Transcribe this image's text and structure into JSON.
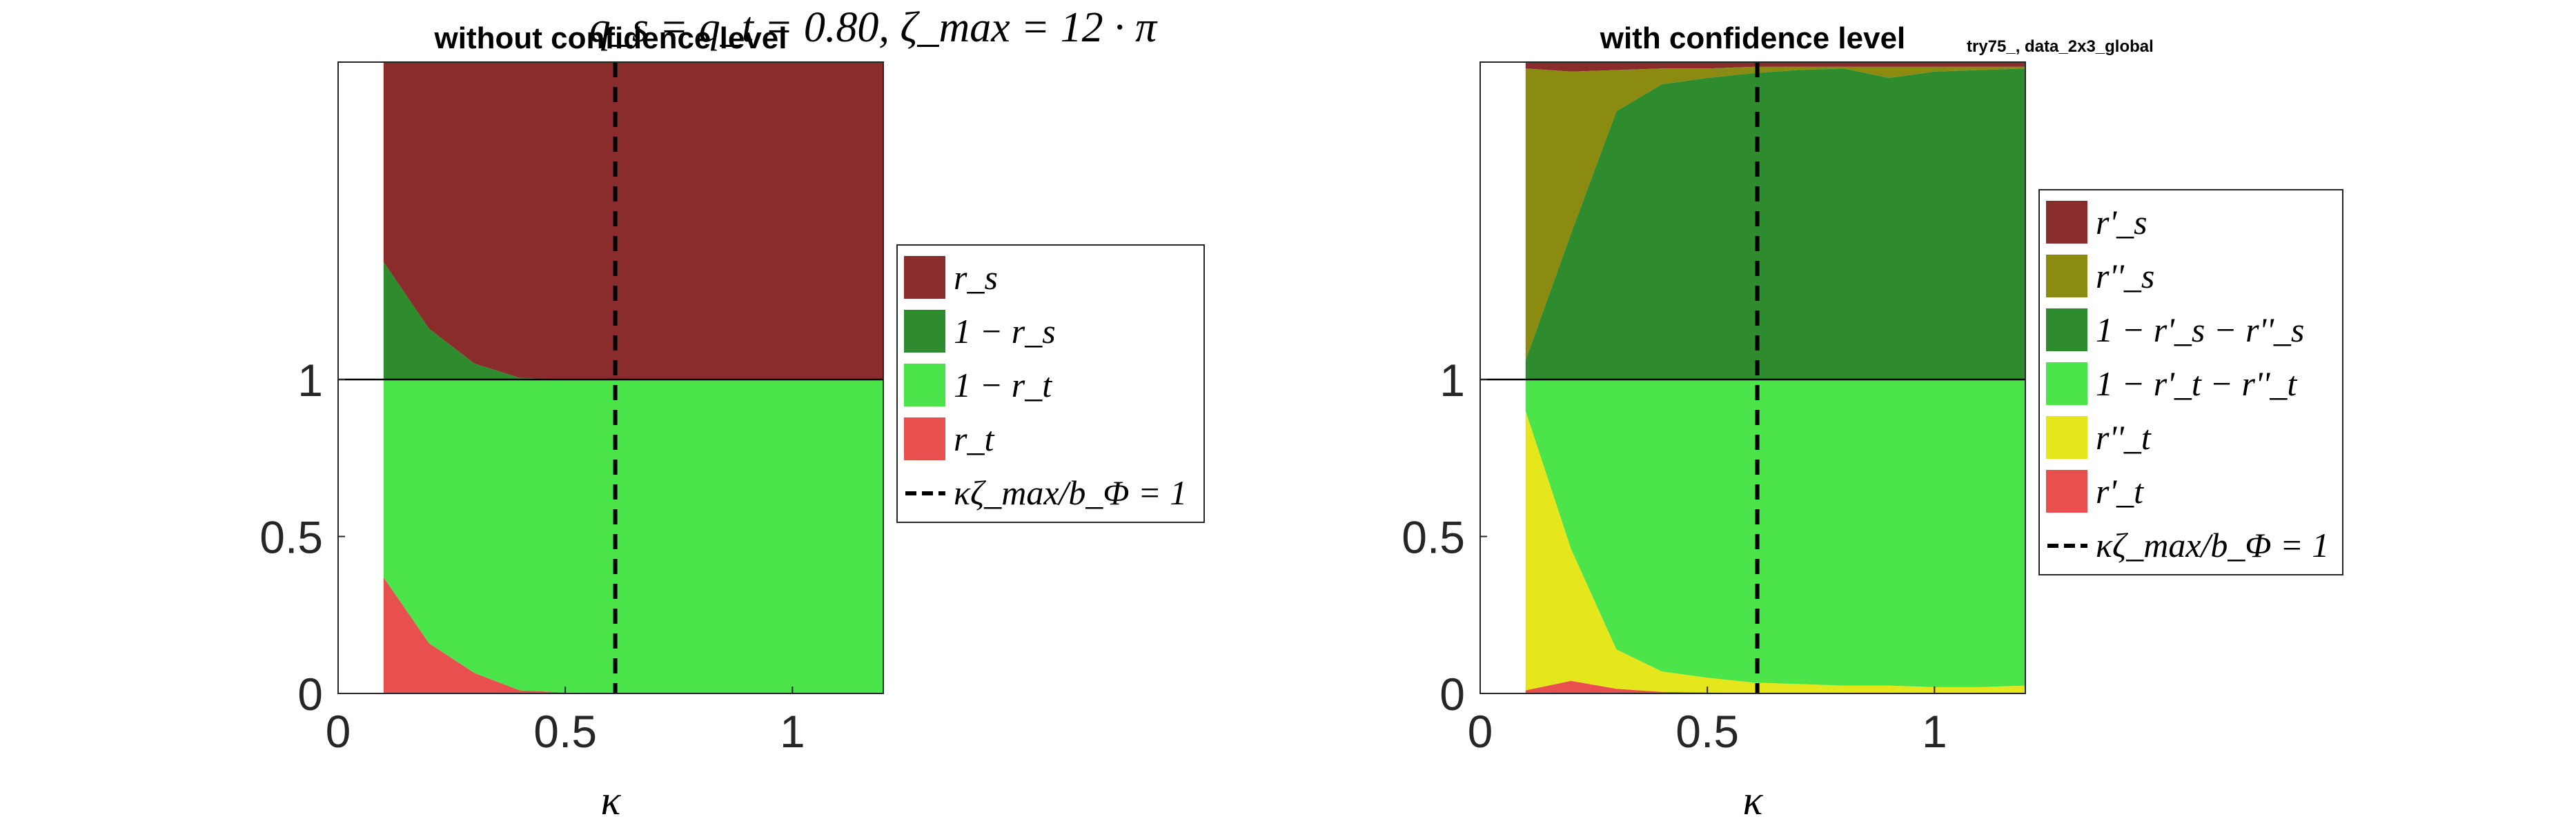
{
  "suptitle": "q_s = q_t = 0.80,  ζ_max = 12 · π",
  "filename_tag": "try75_, data_2x3_global",
  "colors": {
    "rs": "#8b2c2c",
    "one_minus_rs": "#2e8b2e",
    "one_minus_rt": "#4be44b",
    "rt": "#e85050",
    "rs_double": "#8b8b12",
    "rt_double": "#e6e61c",
    "dashed_line": "#000000"
  },
  "chart_data": [
    {
      "type": "area",
      "title": "without confidence level",
      "xlabel": "κ",
      "ylabel": "",
      "xlim": [
        0,
        1.2
      ],
      "ylim": [
        0,
        2
      ],
      "xticks": [
        "0",
        "0.5",
        "1"
      ],
      "xtick_values": [
        0,
        0.5,
        1
      ],
      "yticks": [
        "0",
        "0.5",
        "1"
      ],
      "ytick_values": [
        0,
        0.5,
        1
      ],
      "x": [
        0.1,
        0.2,
        0.3,
        0.4,
        0.5,
        0.6,
        0.7,
        0.8,
        0.9,
        1.0,
        1.1,
        1.2
      ],
      "upper_series": [
        {
          "name": "r_s",
          "color_key": "rs",
          "values": [
            0.63,
            0.84,
            0.95,
            0.995,
            1.0,
            1.0,
            1.0,
            1.0,
            1.0,
            1.0,
            1.0,
            1.0
          ]
        },
        {
          "name": "1 − r_s",
          "color_key": "one_minus_rs",
          "values": [
            0.37,
            0.16,
            0.05,
            0.005,
            0,
            0,
            0,
            0,
            0,
            0,
            0,
            0
          ]
        }
      ],
      "lower_series": [
        {
          "name": "1 − r_t",
          "color_key": "one_minus_rt",
          "values": [
            0.63,
            0.84,
            0.935,
            0.99,
            0.997,
            1.0,
            1.0,
            1.0,
            1.0,
            1.0,
            1.0,
            1.0
          ]
        },
        {
          "name": "r_t",
          "color_key": "rt",
          "values": [
            0.37,
            0.16,
            0.065,
            0.01,
            0.003,
            0,
            0,
            0,
            0,
            0,
            0,
            0
          ]
        }
      ],
      "vline": {
        "x": 0.61,
        "label": "κζ_max/b_Φ = 1"
      },
      "legend_position": "outside right",
      "grid": false
    },
    {
      "type": "area",
      "title": "with confidence level",
      "xlabel": "κ",
      "ylabel": "",
      "xlim": [
        0,
        1.2
      ],
      "ylim": [
        0,
        2
      ],
      "xticks": [
        "0",
        "0.5",
        "1"
      ],
      "xtick_values": [
        0,
        0.5,
        1
      ],
      "yticks": [
        "0",
        "0.5",
        "1"
      ],
      "ytick_values": [
        0,
        0.5,
        1
      ],
      "x": [
        0.1,
        0.2,
        0.3,
        0.4,
        0.5,
        0.6,
        0.7,
        0.8,
        0.9,
        1.0,
        1.1,
        1.2
      ],
      "upper_series": [
        {
          "name": "r'_s",
          "color_key": "rs",
          "values": [
            0.02,
            0.03,
            0.025,
            0.02,
            0.02,
            0.015,
            0.015,
            0.015,
            0.015,
            0.015,
            0.015,
            0.015
          ]
        },
        {
          "name": "r''_s",
          "color_key": "rs_double",
          "values": [
            0.92,
            0.51,
            0.13,
            0.05,
            0.03,
            0.02,
            0.01,
            0.005,
            0.035,
            0.015,
            0.01,
            0.005
          ]
        },
        {
          "name": "1 − r'_s − r''_s",
          "color_key": "one_minus_rs",
          "values": [
            0.06,
            0.46,
            0.845,
            0.93,
            0.95,
            0.965,
            0.975,
            0.98,
            0.95,
            0.97,
            0.975,
            0.98
          ]
        }
      ],
      "lower_series": [
        {
          "name": "1 − r'_t − r''_t",
          "color_key": "one_minus_rt",
          "values": [
            0.1,
            0.54,
            0.86,
            0.93,
            0.95,
            0.965,
            0.97,
            0.975,
            0.975,
            0.98,
            0.98,
            0.975
          ]
        },
        {
          "name": "r''_t",
          "color_key": "rt_double",
          "values": [
            0.89,
            0.42,
            0.125,
            0.065,
            0.047,
            0.033,
            0.028,
            0.023,
            0.023,
            0.018,
            0.018,
            0.023
          ]
        },
        {
          "name": "r'_t",
          "color_key": "rt",
          "values": [
            0.01,
            0.04,
            0.015,
            0.005,
            0.003,
            0.002,
            0.002,
            0.002,
            0.002,
            0.002,
            0.002,
            0.002
          ]
        }
      ],
      "vline": {
        "x": 0.61,
        "label": "κζ_max/b_Φ = 1"
      },
      "legend_position": "outside right",
      "grid": false
    }
  ]
}
